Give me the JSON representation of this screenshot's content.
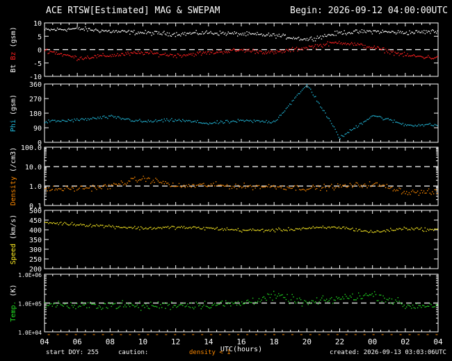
{
  "header": {
    "title": "ACE RTSW[Estimated] MAG & SWEPAM",
    "begin": "Begin: 2026-09-12 04:00:00UTC"
  },
  "footer": {
    "start_doy": "start DOY: 255",
    "caution": "caution:",
    "density_note": "density < 1",
    "created": "created: 2026-09-13 03:03:06UTC"
  },
  "colors": {
    "bt": "#ffffff",
    "bz": "#ff2020",
    "phi": "#22bbdd",
    "density": "#ff8a00",
    "speed": "#ffee22",
    "temp": "#22dd22",
    "axis": "#ffffff",
    "caution": "#ff8a00"
  },
  "chart_data": [
    {
      "type": "scatter",
      "panel": "mag",
      "ylabel_parts": [
        "Bt",
        "Bz",
        "(gsm)"
      ],
      "ylim": [
        -10,
        10
      ],
      "yticks": [
        10,
        5,
        0,
        -5,
        -10
      ],
      "dashed_lines": [
        0
      ],
      "series": [
        {
          "name": "Bt",
          "x": [
            0,
            2,
            4,
            6,
            8,
            10,
            12,
            14,
            16,
            18,
            20,
            22,
            24
          ],
          "values": [
            7.5,
            8.0,
            7.0,
            6.5,
            6.0,
            6.5,
            6.0,
            5.5,
            4.0,
            6.5,
            7.0,
            6.5,
            7.0
          ]
        },
        {
          "name": "Bz",
          "x": [
            0,
            2,
            4,
            6,
            8,
            10,
            12,
            14,
            16,
            18,
            20,
            22,
            24
          ],
          "values": [
            0,
            -3,
            -2,
            -1,
            -2,
            -1,
            0,
            -1,
            1,
            3,
            1,
            -2,
            -3
          ]
        }
      ]
    },
    {
      "type": "scatter",
      "panel": "phi",
      "ylabel_parts": [
        "Phi",
        "(gsm)"
      ],
      "ylim": [
        0,
        360
      ],
      "yticks": [
        360,
        270,
        180,
        90,
        0
      ],
      "series": [
        {
          "name": "Phi",
          "x": [
            0,
            2,
            4,
            6,
            8,
            10,
            12,
            14,
            16,
            18,
            20,
            22,
            24
          ],
          "values": [
            130,
            140,
            160,
            130,
            140,
            120,
            135,
            130,
            360,
            30,
            170,
            110,
            110
          ]
        }
      ]
    },
    {
      "type": "scatter",
      "panel": "density",
      "ylabel_parts": [
        "Density",
        "(/cm3)"
      ],
      "ylim": [
        0.1,
        100
      ],
      "log": true,
      "yticks": [
        100.0,
        10.0,
        1.0,
        0.1
      ],
      "ytick_labels": [
        "100.0",
        "10.0",
        "1.0",
        "0.1"
      ],
      "dashed_lines": [
        1,
        10
      ],
      "series": [
        {
          "name": "Density",
          "x": [
            0,
            2,
            4,
            6,
            8,
            10,
            12,
            14,
            16,
            18,
            20,
            22,
            24
          ],
          "values": [
            0.7,
            0.8,
            1.0,
            2.5,
            1.0,
            1.2,
            1.0,
            1.0,
            0.8,
            1.0,
            1.3,
            0.5,
            0.5
          ]
        }
      ]
    },
    {
      "type": "scatter",
      "panel": "speed",
      "ylabel_parts": [
        "Speed",
        "(km/s)"
      ],
      "ylim": [
        200,
        500
      ],
      "yticks": [
        500,
        450,
        400,
        350,
        300,
        250,
        200
      ],
      "series": [
        {
          "name": "Speed",
          "x": [
            0,
            2,
            4,
            6,
            8,
            10,
            12,
            14,
            16,
            18,
            20,
            22,
            24
          ],
          "values": [
            440,
            430,
            420,
            410,
            415,
            410,
            400,
            400,
            410,
            415,
            390,
            410,
            400
          ]
        }
      ]
    },
    {
      "type": "scatter",
      "panel": "temp",
      "ylabel_parts": [
        "Temp.",
        "(K)"
      ],
      "ylim": [
        10000,
        1000000
      ],
      "log": true,
      "yticks": [
        1000000,
        100000,
        10000
      ],
      "ytick_labels": [
        "1.0E+06",
        "1.0E+05",
        "1.0E+04"
      ],
      "dashed_lines": [
        100000
      ],
      "series": [
        {
          "name": "Temp",
          "x": [
            0,
            2,
            4,
            6,
            8,
            10,
            12,
            14,
            16,
            18,
            20,
            22,
            24
          ],
          "values": [
            100000,
            80000,
            90000,
            80000,
            90000,
            90000,
            100000,
            180000,
            100000,
            150000,
            200000,
            80000,
            90000
          ]
        }
      ]
    }
  ],
  "x_axis": {
    "range_hours": [
      0,
      24
    ],
    "tick_labels": [
      "04",
      "06",
      "08",
      "10",
      "12",
      "14",
      "16",
      "18",
      "20",
      "22",
      "00",
      "02",
      "04"
    ],
    "xlabel": "UTC(hours)"
  }
}
